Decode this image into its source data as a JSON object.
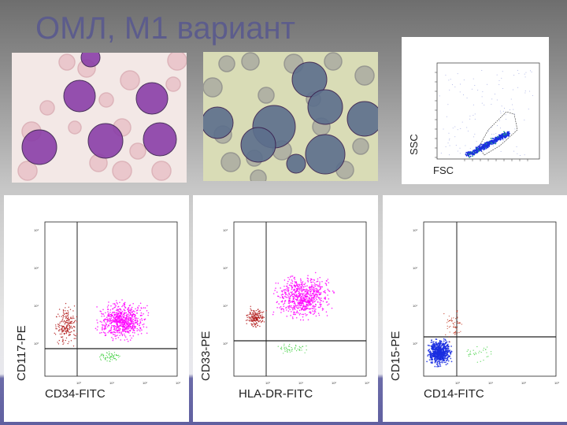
{
  "slide": {
    "title": "ОМЛ, М1 вариант"
  },
  "images": [
    {
      "name": "romanowsky-smear",
      "stain_color": "#8a3fa8"
    },
    {
      "name": "cytochemistry-smear",
      "stain_color": "#5c6f8c"
    }
  ],
  "scatter_gate": {
    "xlabel": "FSC",
    "ylabel": "SSC",
    "dot_color": "#1a2ee0"
  },
  "plots": [
    {
      "xlabel": "CD34-FITC",
      "ylabel": "CD117-PE",
      "main_color": "#ff00ff",
      "secondary_color": "#b01818",
      "tertiary_color": "#33cc33"
    },
    {
      "xlabel": "HLA-DR-FITC",
      "ylabel": "CD33-PE",
      "main_color": "#ff00ff",
      "secondary_color": "#b01818",
      "tertiary_color": "#33cc33"
    },
    {
      "xlabel": "CD14-FITC",
      "ylabel": "CD15-PE",
      "main_color": "#1a2ee0",
      "secondary_color": "#c0301a",
      "tertiary_color": "#33cc33"
    }
  ],
  "tick_labels": [
    "10⁰",
    "10¹",
    "10²",
    "10³"
  ]
}
